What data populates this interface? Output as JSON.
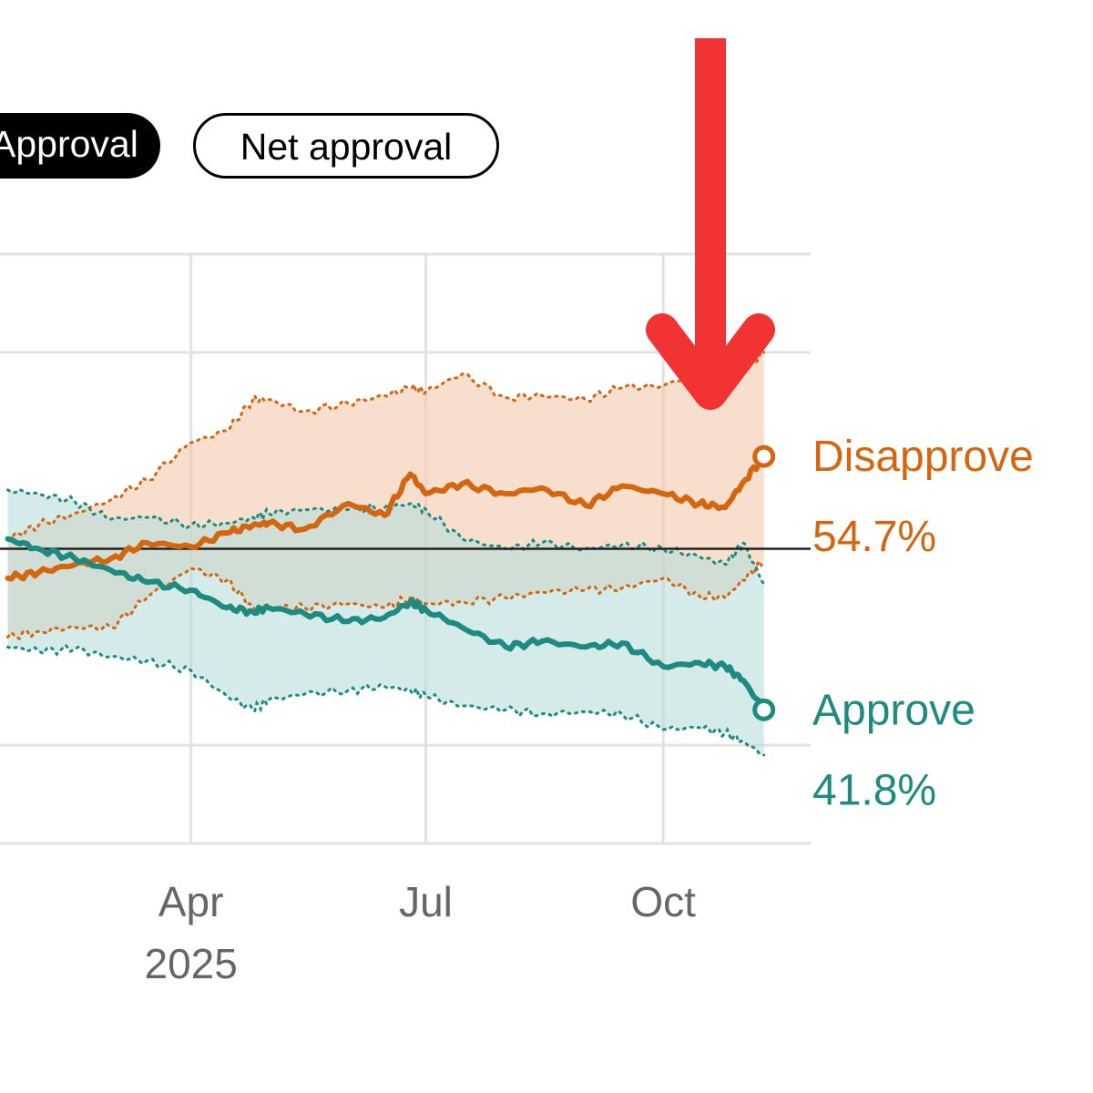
{
  "tabs": {
    "approval_label": "Approval",
    "net_approval_label": "Net approval"
  },
  "colors": {
    "disapprove": "#d4660f",
    "approve": "#1f8a80",
    "disapprove_band": "#f4c9ac",
    "approve_band": "#b7dedb",
    "arrow": "#f23333",
    "grid": "#e2e2e2",
    "axis_text": "#666666",
    "reference_line": "#222222"
  },
  "annotation": {
    "arrow_icon": "red-down-arrow-icon"
  },
  "chart_data": {
    "type": "line",
    "x_tick_labels": [
      {
        "date": "2025-04-01",
        "label": "Apr",
        "sublabel": "2025"
      },
      {
        "date": "2025-07-01",
        "label": "Jul",
        "sublabel": ""
      },
      {
        "date": "2025-10-01",
        "label": "Oct",
        "sublabel": ""
      }
    ],
    "xlim": [
      "2025-01-17",
      "2025-11-13"
    ],
    "ylim": [
      35,
      65
    ],
    "y_gridlines": [
      40,
      50,
      60
    ],
    "grid": true,
    "reference_line": 50,
    "series": [
      {
        "name": "Disapprove",
        "final_label": "54.7%",
        "x": [
          "2025-01-20",
          "2025-02-01",
          "2025-02-15",
          "2025-03-01",
          "2025-03-15",
          "2025-04-01",
          "2025-04-15",
          "2025-04-25",
          "2025-05-01",
          "2025-05-15",
          "2025-06-01",
          "2025-06-15",
          "2025-06-25",
          "2025-07-01",
          "2025-07-15",
          "2025-08-01",
          "2025-08-15",
          "2025-09-01",
          "2025-09-15",
          "2025-10-01",
          "2025-10-15",
          "2025-10-25",
          "2025-11-01",
          "2025-11-09"
        ],
        "values": [
          48.5,
          48.8,
          49.2,
          49.5,
          50.3,
          50.1,
          50.8,
          51.2,
          51.3,
          51.0,
          52.3,
          51.7,
          53.8,
          52.8,
          53.3,
          52.8,
          53.1,
          52.2,
          53.2,
          52.8,
          52.3,
          52.1,
          53.4,
          54.7
        ],
        "upper": [
          50.5,
          51.2,
          51.8,
          52.5,
          53.5,
          55.4,
          56.0,
          57.6,
          57.6,
          57.0,
          57.4,
          57.8,
          58.2,
          58.0,
          58.9,
          57.7,
          57.8,
          57.6,
          58.2,
          58.3,
          59.0,
          58.5,
          59.0,
          60.0
        ],
        "lower": [
          45.5,
          45.8,
          46.0,
          46.0,
          47.5,
          49.0,
          48.4,
          47.0,
          47.0,
          47.0,
          47.2,
          47.0,
          47.5,
          47.2,
          47.3,
          47.5,
          47.8,
          47.9,
          48.0,
          48.5,
          47.6,
          47.5,
          48.4,
          49.4
        ]
      },
      {
        "name": "Approve",
        "final_label": "41.8%",
        "x": [
          "2025-01-20",
          "2025-02-01",
          "2025-02-15",
          "2025-03-01",
          "2025-03-15",
          "2025-04-01",
          "2025-04-15",
          "2025-04-25",
          "2025-05-01",
          "2025-05-15",
          "2025-06-01",
          "2025-06-15",
          "2025-06-25",
          "2025-07-01",
          "2025-07-15",
          "2025-08-01",
          "2025-08-15",
          "2025-09-01",
          "2025-09-15",
          "2025-10-01",
          "2025-10-15",
          "2025-10-25",
          "2025-11-01",
          "2025-11-09"
        ],
        "values": [
          50.5,
          50.0,
          49.5,
          48.9,
          48.3,
          47.9,
          47.0,
          46.8,
          47.0,
          46.7,
          46.3,
          46.5,
          47.3,
          46.9,
          46.0,
          45.0,
          45.3,
          45.0,
          45.2,
          44.0,
          44.2,
          44.0,
          43.3,
          41.8
        ],
        "upper": [
          53.0,
          52.8,
          52.4,
          51.5,
          51.6,
          51.2,
          51.3,
          51.6,
          51.8,
          52.0,
          52.0,
          52.1,
          52.3,
          52.0,
          50.5,
          50.0,
          50.3,
          50.0,
          50.2,
          50.0,
          49.6,
          49.2,
          50.3,
          48.2
        ],
        "lower": [
          45.0,
          44.8,
          44.9,
          44.5,
          44.3,
          43.8,
          42.5,
          41.8,
          42.3,
          42.6,
          42.8,
          43.0,
          42.8,
          42.5,
          42.0,
          41.8,
          41.6,
          41.7,
          41.6,
          40.8,
          40.9,
          40.6,
          40.2,
          39.5
        ]
      }
    ]
  }
}
